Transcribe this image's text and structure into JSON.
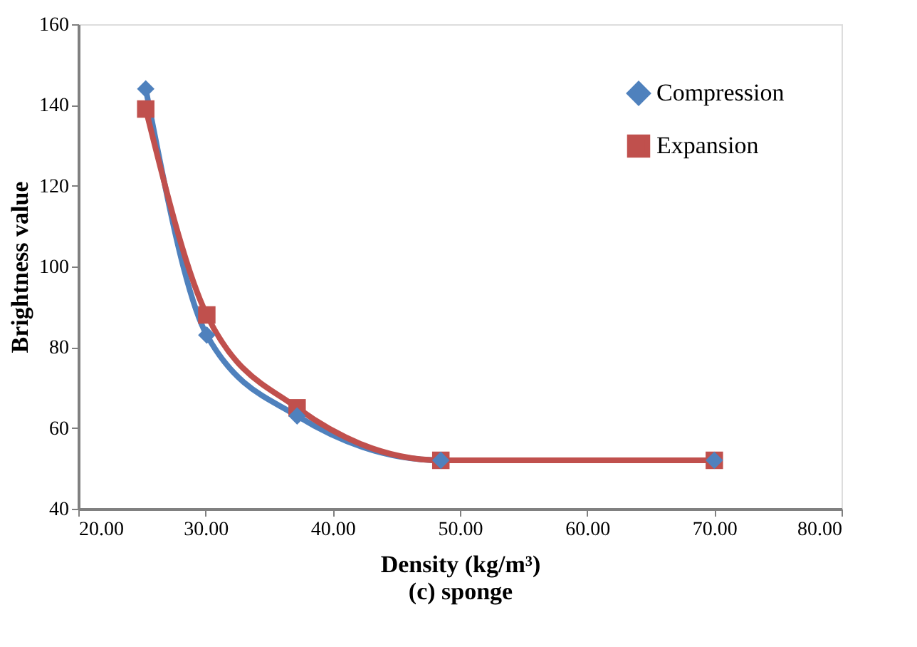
{
  "chart_data": {
    "type": "line",
    "xlabel": "Density (kg/m³)",
    "ylabel": "Brightness value",
    "annotations": [
      "(c) sponge"
    ],
    "xlim": [
      20,
      80
    ],
    "xticks": [
      {
        "value": 20,
        "label": "20.00"
      },
      {
        "value": 30,
        "label": "30.00"
      },
      {
        "value": 40,
        "label": "40.00"
      },
      {
        "value": 50,
        "label": "50.00"
      },
      {
        "value": 60,
        "label": "60.00"
      },
      {
        "value": 70,
        "label": "70.00"
      },
      {
        "value": 80,
        "label": "80.00"
      }
    ],
    "ylim": [
      40,
      160
    ],
    "yticks": [
      40,
      60,
      80,
      100,
      120,
      140,
      160
    ],
    "grid": false,
    "legend": "top right",
    "line_style": "solid",
    "series": [
      {
        "name": "Compression",
        "color": "#4f81bd",
        "marker": "diamond",
        "x": [
          25.3,
          30.1,
          37.2,
          48.5,
          70
        ],
        "values": [
          144,
          83,
          63,
          52,
          52
        ]
      },
      {
        "name": "Expansion",
        "color": "#c0504d",
        "marker": "square",
        "x": [
          25.3,
          30.1,
          37.2,
          48.5,
          70
        ],
        "values": [
          139,
          88,
          65,
          52,
          52
        ]
      }
    ]
  }
}
